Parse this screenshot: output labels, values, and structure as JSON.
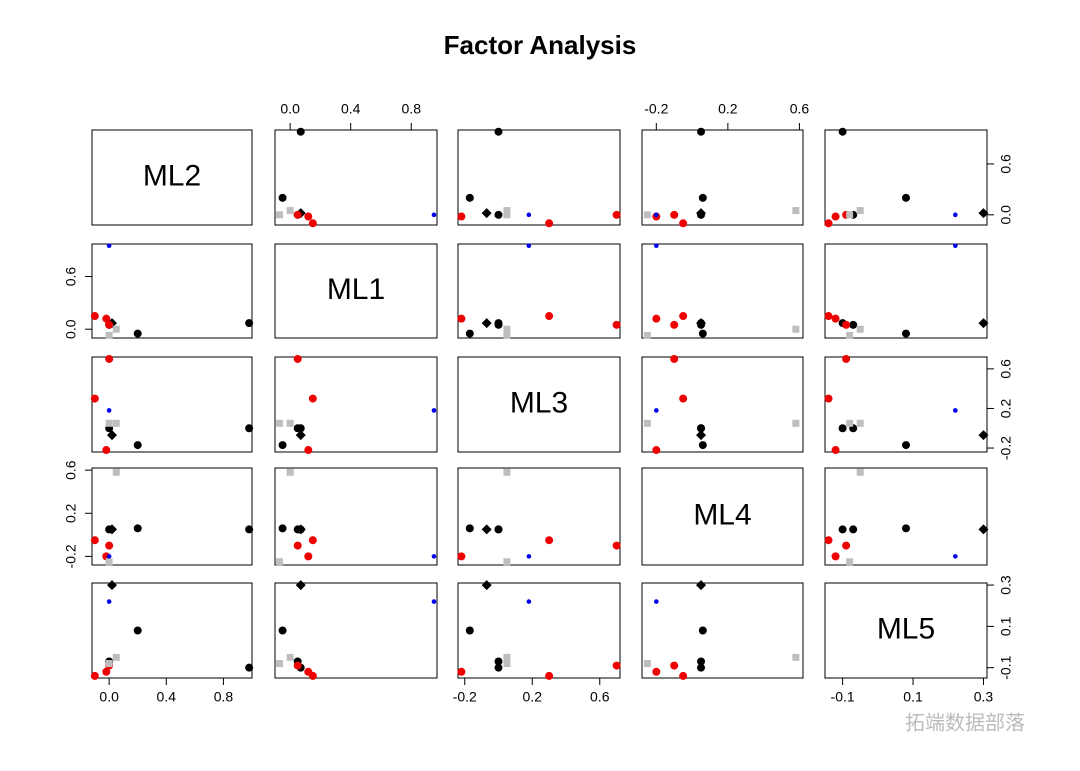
{
  "chart_data": {
    "type": "scatter_matrix",
    "title": "Factor Analysis",
    "variables": [
      {
        "name": "ML2",
        "lim": [
          -0.12,
          1.0
        ],
        "xticks": [
          {
            "value": 0,
            "label": "0.0"
          },
          0.4,
          0.8
        ],
        "yticks": [
          {
            "value": 0,
            "label": "0.0"
          },
          0.6
        ]
      },
      {
        "name": "ML1",
        "lim": [
          -0.1,
          0.97
        ],
        "xticks": [
          {
            "value": 0,
            "label": "0.0"
          },
          0.4,
          0.8
        ],
        "yticks": [
          {
            "value": 0,
            "label": "0.0"
          },
          0.6
        ]
      },
      {
        "name": "ML3",
        "lim": [
          -0.24,
          0.72
        ],
        "xticks": [
          -0.2,
          0.2,
          0.6
        ],
        "yticks": [
          -0.2,
          0.2,
          0.6
        ]
      },
      {
        "name": "ML4",
        "lim": [
          -0.28,
          0.62
        ],
        "xticks": [
          -0.2,
          0.2,
          0.6
        ],
        "yticks": [
          -0.2,
          0.2,
          0.6
        ]
      },
      {
        "name": "ML5",
        "lim": [
          -0.15,
          0.31
        ],
        "xticks": [
          -0.1,
          0.1,
          0.3
        ],
        "yticks": [
          -0.1,
          0.1,
          0.3
        ]
      }
    ],
    "points": [
      {
        "color": "#000000",
        "shape": "circle",
        "values": [
          0.98,
          0.07,
          0.0,
          0.05,
          -0.1
        ]
      },
      {
        "color": "#000000",
        "shape": "circle",
        "values": [
          0.2,
          -0.05,
          -0.17,
          0.06,
          0.08
        ]
      },
      {
        "color": "#000000",
        "shape": "diamond",
        "values": [
          0.02,
          0.07,
          -0.07,
          0.05,
          0.3
        ]
      },
      {
        "color": "#000000",
        "shape": "circle",
        "values": [
          0.0,
          0.05,
          0.0,
          0.05,
          -0.07
        ]
      },
      {
        "color": "#ee0000",
        "shape": "circle",
        "values": [
          -0.1,
          0.15,
          0.3,
          -0.05,
          -0.14
        ]
      },
      {
        "color": "#ee0000",
        "shape": "circle",
        "values": [
          -0.02,
          0.12,
          -0.22,
          -0.2,
          -0.12
        ]
      },
      {
        "color": "#ee0000",
        "shape": "circle",
        "values": [
          0.0,
          0.05,
          0.7,
          -0.1,
          -0.09
        ]
      },
      {
        "color": "#bebebe",
        "shape": "square",
        "values": [
          0.05,
          0.0,
          0.05,
          0.58,
          -0.05
        ]
      },
      {
        "color": "#bebebe",
        "shape": "square",
        "values": [
          0.0,
          -0.07,
          0.05,
          -0.25,
          -0.08
        ]
      },
      {
        "color": "#0000ee",
        "shape": "dot",
        "values": [
          0.0,
          0.95,
          0.18,
          -0.2,
          0.22
        ]
      }
    ],
    "watermark": "拓端数据部落"
  }
}
